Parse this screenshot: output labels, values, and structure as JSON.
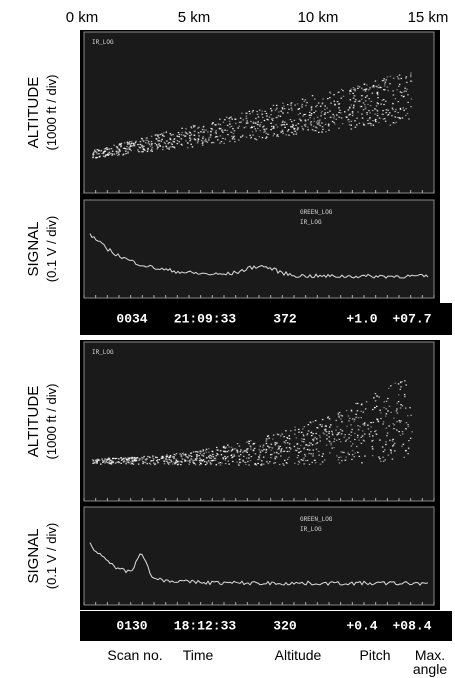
{
  "distance_labels": [
    "0 km",
    "5 km",
    "10 km",
    "15 km"
  ],
  "panels": [
    {
      "altitude_label": "ALTITUDE",
      "altitude_unit": "(1000 ft / div)",
      "altitude_trace": "IR_LOG",
      "signal_label": "SIGNAL",
      "signal_unit": "(0.1 V / div)",
      "signal_traces": [
        "GREEN_LOG",
        "IR_LOG"
      ],
      "status": [
        "0034",
        "21:09:33",
        "372",
        "+1.0",
        "+07.7"
      ]
    },
    {
      "altitude_label": "ALTITUDE",
      "altitude_unit": "(1000 ft / div)",
      "altitude_trace": "IR_LOG",
      "signal_label": "SIGNAL",
      "signal_unit": "(0.1 V / div)",
      "signal_traces": [
        "GREEN_LOG",
        "IR_LOG"
      ],
      "status": [
        "0130",
        "18:12:33",
        "320",
        "+0.4",
        "+08.4"
      ]
    }
  ],
  "column_labels": [
    "Scan no.",
    "Time",
    "Altitude",
    "Pitch",
    "Max. angle"
  ]
}
